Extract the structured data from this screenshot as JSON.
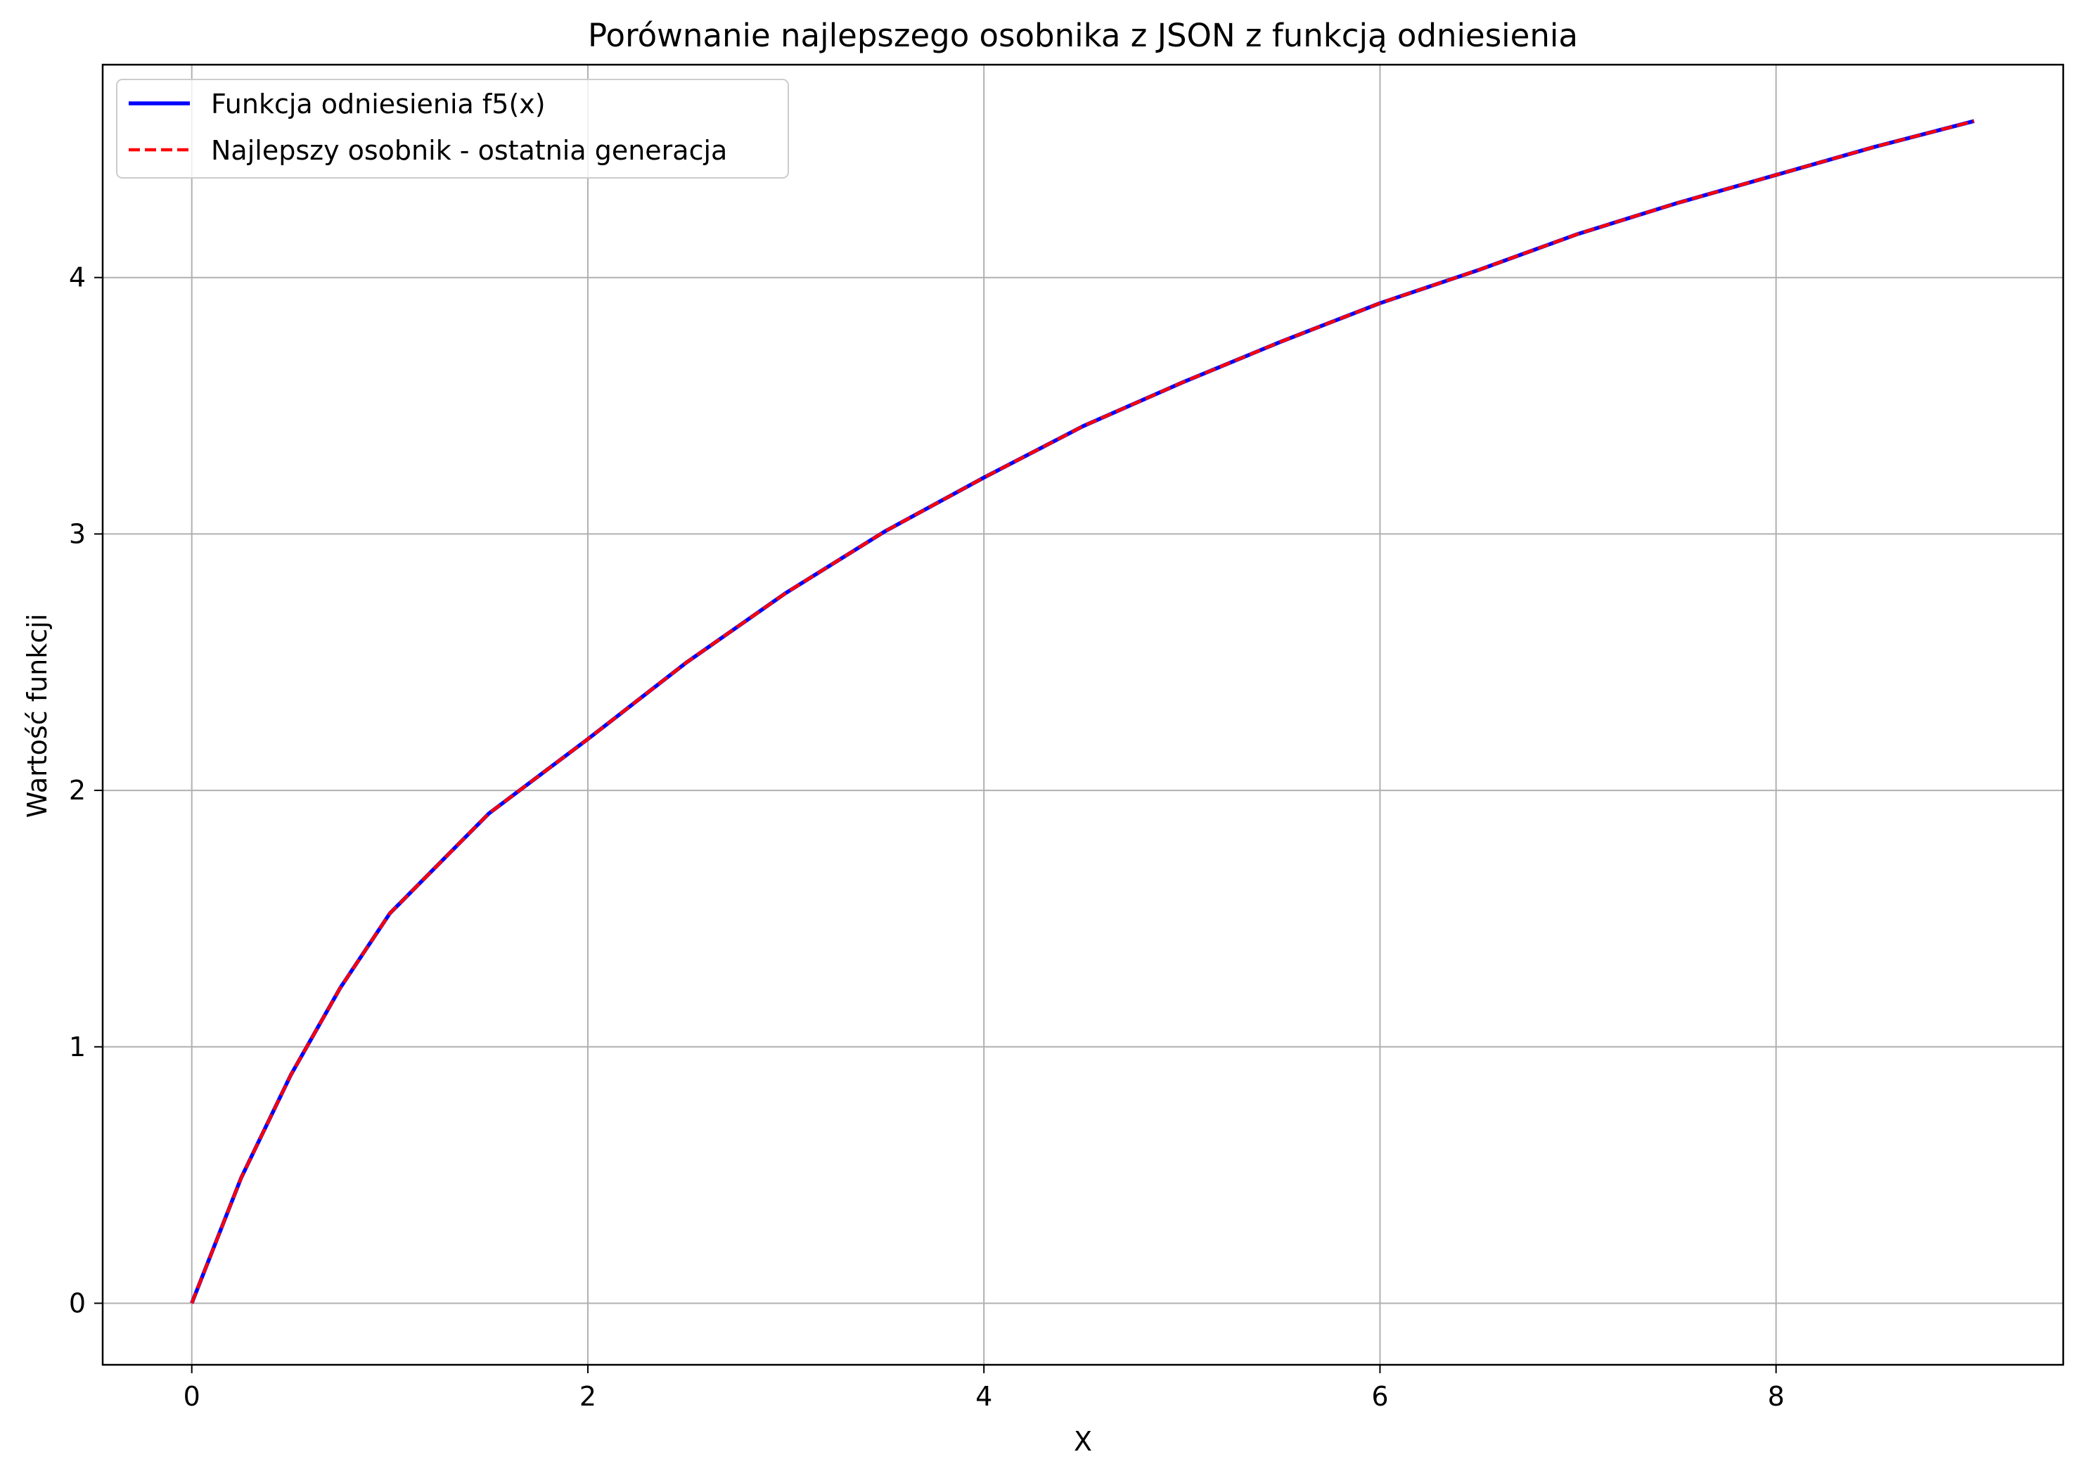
{
  "chart_data": {
    "type": "line",
    "title": "Porównanie najlepszego osobnika z JSON z funkcją odniesienia",
    "xlabel": "X",
    "ylabel": "Wartość funkcji",
    "xlim": [
      -0.45,
      9.45
    ],
    "ylim": [
      -0.24,
      4.83
    ],
    "xticks": [
      0,
      2,
      4,
      6,
      8
    ],
    "yticks": [
      0,
      1,
      2,
      3,
      4
    ],
    "grid": true,
    "legend_position": "upper-left",
    "x": [
      0,
      0.25,
      0.5,
      0.75,
      1,
      1.5,
      2,
      2.5,
      3,
      3.5,
      4,
      4.5,
      5,
      5.5,
      6,
      6.5,
      7,
      7.5,
      8,
      8.5,
      9
    ],
    "series": [
      {
        "name": "Funkcja odniesienia f5(x)",
        "color": "#0000ff",
        "style": "solid",
        "values": [
          0,
          0.49,
          0.89,
          1.23,
          1.52,
          1.91,
          2.2,
          2.5,
          2.77,
          3.01,
          3.22,
          3.42,
          3.59,
          3.75,
          3.9,
          4.03,
          4.17,
          4.29,
          4.4,
          4.51,
          4.61
        ]
      },
      {
        "name": "Najlepszy osobnik - ostatnia generacja",
        "color": "#ff0000",
        "style": "dashed",
        "values": [
          0,
          0.49,
          0.89,
          1.23,
          1.52,
          1.91,
          2.2,
          2.5,
          2.77,
          3.01,
          3.22,
          3.42,
          3.59,
          3.75,
          3.9,
          4.03,
          4.17,
          4.29,
          4.4,
          4.51,
          4.61
        ]
      }
    ]
  }
}
